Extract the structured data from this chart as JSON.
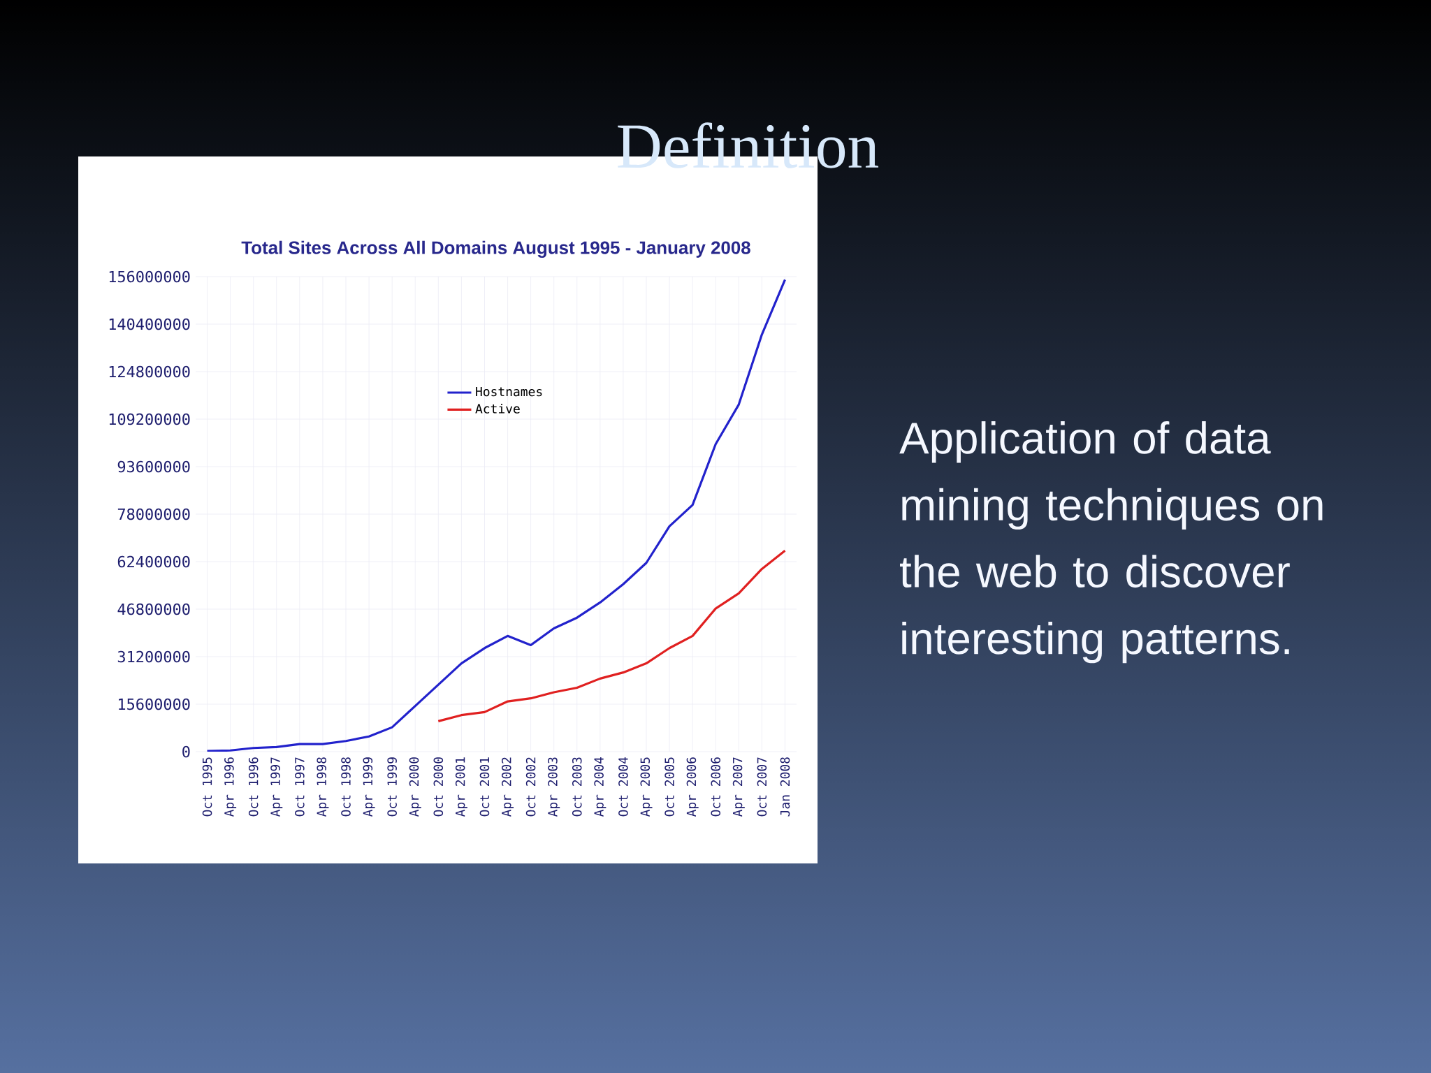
{
  "chart_data": {
    "type": "line",
    "title": "Total Sites Across All Domains August 1995 - January 2008",
    "annotations": [
      "Definition",
      "Application of  data mining techniques on the web to discover interesting patterns."
    ],
    "categories": [
      "Oct 1995",
      "Apr 1996",
      "Oct 1996",
      "Apr 1997",
      "Oct 1997",
      "Apr 1998",
      "Oct 1998",
      "Apr 1999",
      "Oct 1999",
      "Apr 2000",
      "Oct 2000",
      "Apr 2001",
      "Oct 2001",
      "Apr 2002",
      "Oct 2002",
      "Apr 2003",
      "Oct 2003",
      "Apr 2004",
      "Oct 2004",
      "Apr 2005",
      "Oct 2005",
      "Apr 2006",
      "Oct 2006",
      "Apr 2007",
      "Oct 2007",
      "Jan 2008"
    ],
    "series": [
      {
        "name": "Hostnames",
        "color": "#2222cc",
        "values": [
          200000,
          400000,
          1200000,
          1500000,
          2500000,
          2500000,
          3500000,
          5000000,
          8000000,
          15000000,
          22000000,
          29000000,
          34000000,
          38000000,
          35000000,
          40500000,
          44000000,
          49000000,
          55000000,
          62000000,
          74000000,
          81000000,
          101000000,
          114000000,
          137000000,
          155000000
        ]
      },
      {
        "name": "Active",
        "color": "#e02020",
        "values": [
          null,
          null,
          null,
          null,
          null,
          null,
          null,
          null,
          null,
          null,
          10000000,
          12000000,
          13000000,
          16500000,
          17500000,
          19500000,
          21000000,
          24000000,
          26000000,
          29000000,
          34000000,
          38000000,
          47000000,
          52000000,
          60000000,
          66000000
        ]
      }
    ],
    "ylim": [
      0,
      156000000
    ],
    "yticks": [
      0,
      15600000,
      31200000,
      46800000,
      62400000,
      78000000,
      93600000,
      109200000,
      124800000,
      140400000,
      156000000
    ],
    "grid": true,
    "legend": "top",
    "marker": "none",
    "line_style": "solid"
  }
}
